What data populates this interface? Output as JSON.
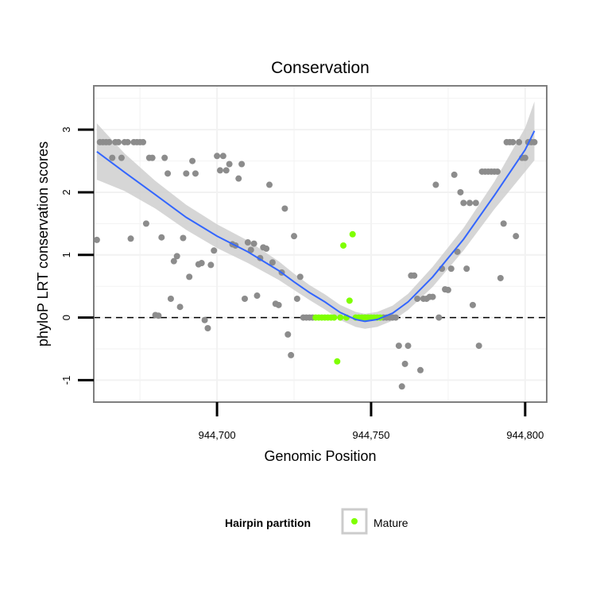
{
  "chart_data": {
    "type": "scatter",
    "title": "Conservation",
    "xlabel": "Genomic Position",
    "ylabel": "phyloP LRT conservation scores",
    "xlim": [
      944660,
      944807
    ],
    "ylim": [
      -1.35,
      3.7
    ],
    "x_ticks": [
      944700,
      944750,
      944800
    ],
    "x_tick_labels": [
      "944,700",
      "944,750",
      "944,800"
    ],
    "y_ticks": [
      -1,
      0,
      1,
      2,
      3
    ],
    "y_tick_labels": [
      "-1",
      "0",
      "1",
      "2",
      "3"
    ],
    "grid": true,
    "reference_line": {
      "y": 0,
      "style": "dashed"
    },
    "legend": {
      "title": "Hairpin partition",
      "position": "bottom",
      "entries": [
        "Mature"
      ]
    },
    "colors": {
      "other": "#8c8c8c",
      "mature": "#7fff00",
      "smooth": "#3366ff",
      "ribbon": "#cccccc",
      "panel_border": "#7f7f7f",
      "grid": "#f2f2f2"
    },
    "series": [
      {
        "name": "Mature",
        "points": [
          [
            944732,
            0
          ],
          [
            944733,
            0
          ],
          [
            944734,
            0
          ],
          [
            944735,
            0
          ],
          [
            944736,
            0
          ],
          [
            944737,
            0
          ],
          [
            944738,
            0
          ],
          [
            944739,
            -0.7
          ],
          [
            944740,
            0
          ],
          [
            944741,
            1.15
          ],
          [
            944742,
            0
          ],
          [
            944743,
            0.27
          ],
          [
            944744,
            1.33
          ],
          [
            944745,
            0
          ],
          [
            944746,
            0
          ],
          [
            944747,
            0
          ],
          [
            944748,
            0
          ],
          [
            944749,
            0
          ],
          [
            944750,
            0
          ],
          [
            944751,
            0
          ],
          [
            944752,
            0
          ],
          [
            944753,
            0
          ]
        ]
      },
      {
        "points": [
          [
            944661,
            1.24
          ],
          [
            944662,
            2.8
          ],
          [
            944663,
            2.8
          ],
          [
            944664,
            2.8
          ],
          [
            944665,
            2.8
          ],
          [
            944666,
            2.55
          ],
          [
            944667,
            2.8
          ],
          [
            944668,
            2.8
          ],
          [
            944669,
            2.55
          ],
          [
            944670,
            2.8
          ],
          [
            944671,
            2.8
          ],
          [
            944672,
            1.26
          ],
          [
            944673,
            2.8
          ],
          [
            944674,
            2.8
          ],
          [
            944675,
            2.8
          ],
          [
            944676,
            2.8
          ],
          [
            944677,
            1.5
          ],
          [
            944678,
            2.55
          ],
          [
            944679,
            2.55
          ],
          [
            944680,
            0.04
          ],
          [
            944681,
            0.03
          ],
          [
            944682,
            1.28
          ],
          [
            944683,
            2.55
          ],
          [
            944684,
            2.3
          ],
          [
            944685,
            0.3
          ],
          [
            944686,
            0.9
          ],
          [
            944687,
            0.98
          ],
          [
            944688,
            0.17
          ],
          [
            944689,
            1.27
          ],
          [
            944690,
            2.3
          ],
          [
            944691,
            0.65
          ],
          [
            944692,
            2.5
          ],
          [
            944693,
            2.3
          ],
          [
            944694,
            0.85
          ],
          [
            944695,
            0.87
          ],
          [
            944696,
            -0.04
          ],
          [
            944697,
            -0.17
          ],
          [
            944698,
            0.84
          ],
          [
            944699,
            1.07
          ],
          [
            944700,
            2.58
          ],
          [
            944701,
            2.35
          ],
          [
            944702,
            2.58
          ],
          [
            944703,
            2.35
          ],
          [
            944704,
            2.45
          ],
          [
            944705,
            1.17
          ],
          [
            944706,
            1.15
          ],
          [
            944707,
            2.22
          ],
          [
            944708,
            2.45
          ],
          [
            944709,
            0.3
          ],
          [
            944710,
            1.2
          ],
          [
            944711,
            1.08
          ],
          [
            944712,
            1.18
          ],
          [
            944713,
            0.35
          ],
          [
            944714,
            0.95
          ],
          [
            944715,
            1.12
          ],
          [
            944716,
            1.1
          ],
          [
            944717,
            2.12
          ],
          [
            944718,
            0.88
          ],
          [
            944719,
            0.22
          ],
          [
            944720,
            0.2
          ],
          [
            944721,
            0.72
          ],
          [
            944722,
            1.74
          ],
          [
            944723,
            -0.27
          ],
          [
            944724,
            -0.6
          ],
          [
            944725,
            1.3
          ],
          [
            944726,
            0.3
          ],
          [
            944727,
            0.65
          ],
          [
            944728,
            0
          ],
          [
            944729,
            0
          ],
          [
            944730,
            0
          ],
          [
            944731,
            0
          ],
          [
            944754,
            0
          ],
          [
            944755,
            0
          ],
          [
            944756,
            0
          ],
          [
            944757,
            0
          ],
          [
            944758,
            0
          ],
          [
            944759,
            -0.45
          ],
          [
            944760,
            -1.1
          ],
          [
            944761,
            -0.74
          ],
          [
            944762,
            -0.45
          ],
          [
            944763,
            0.67
          ],
          [
            944764,
            0.67
          ],
          [
            944765,
            0.3
          ],
          [
            944766,
            -0.84
          ],
          [
            944767,
            0.3
          ],
          [
            944768,
            0.3
          ],
          [
            944769,
            0.33
          ],
          [
            944770,
            0.33
          ],
          [
            944771,
            2.12
          ],
          [
            944772,
            0
          ],
          [
            944773,
            0.78
          ],
          [
            944774,
            0.45
          ],
          [
            944775,
            0.44
          ],
          [
            944776,
            0.78
          ],
          [
            944777,
            2.28
          ],
          [
            944778,
            1.05
          ],
          [
            944779,
            2
          ],
          [
            944780,
            1.83
          ],
          [
            944781,
            0.78
          ],
          [
            944782,
            1.83
          ],
          [
            944783,
            0.2
          ],
          [
            944784,
            1.83
          ],
          [
            944785,
            -0.45
          ],
          [
            944786,
            2.33
          ],
          [
            944787,
            2.33
          ],
          [
            944788,
            2.33
          ],
          [
            944789,
            2.33
          ],
          [
            944790,
            2.33
          ],
          [
            944791,
            2.33
          ],
          [
            944792,
            0.63
          ],
          [
            944793,
            1.5
          ],
          [
            944794,
            2.8
          ],
          [
            944795,
            2.8
          ],
          [
            944796,
            2.8
          ],
          [
            944797,
            1.3
          ],
          [
            944798,
            2.8
          ],
          [
            944799,
            2.55
          ],
          [
            944800,
            2.55
          ],
          [
            944801,
            2.8
          ],
          [
            944802,
            2.8
          ],
          [
            944803,
            2.8
          ]
        ]
      }
    ],
    "smooth": {
      "x": [
        944661,
        944670,
        944680,
        944690,
        944700,
        944710,
        944720,
        944725,
        944730,
        944735,
        944740,
        944745,
        944748,
        944752,
        944757,
        944762,
        944770,
        944780,
        944790,
        944800,
        944803
      ],
      "y": [
        2.65,
        2.32,
        1.96,
        1.6,
        1.3,
        1.05,
        0.75,
        0.57,
        0.4,
        0.25,
        0.08,
        -0.03,
        -0.06,
        -0.03,
        0.07,
        0.25,
        0.65,
        1.25,
        1.95,
        2.68,
        2.98
      ],
      "se": [
        0.45,
        0.3,
        0.22,
        0.2,
        0.19,
        0.18,
        0.15,
        0.13,
        0.12,
        0.12,
        0.12,
        0.12,
        0.12,
        0.12,
        0.12,
        0.13,
        0.16,
        0.18,
        0.22,
        0.35,
        0.47
      ]
    }
  }
}
